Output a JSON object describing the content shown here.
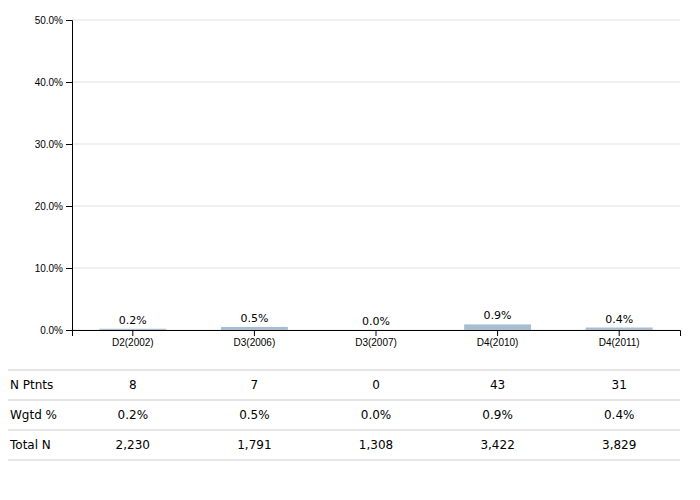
{
  "chart_data": {
    "type": "bar",
    "categories": [
      "D2(2002)",
      "D3(2006)",
      "D3(2007)",
      "D4(2010)",
      "D4(2011)"
    ],
    "values": [
      0.2,
      0.5,
      0.0,
      0.9,
      0.4
    ],
    "value_labels": [
      "0.2%",
      "0.5%",
      "0.0%",
      "0.9%",
      "0.4%"
    ],
    "color": "#a8bdd0",
    "ylim": [
      0,
      50
    ],
    "yticks": [
      {
        "value": 0,
        "label": "0.0%"
      },
      {
        "value": 10,
        "label": "10.0%"
      },
      {
        "value": 20,
        "label": "20.0%"
      },
      {
        "value": 30,
        "label": "30.0%"
      },
      {
        "value": 40,
        "label": "40.0%"
      },
      {
        "value": 50,
        "label": "50.0%"
      }
    ],
    "grid": true,
    "data_labels": true,
    "table": [
      {
        "label": "N Ptnts",
        "values": [
          "8",
          "7",
          "0",
          "43",
          "31"
        ]
      },
      {
        "label": "Wgtd %",
        "values": [
          "0.2%",
          "0.5%",
          "0.0%",
          "0.9%",
          "0.4%"
        ]
      },
      {
        "label": "Total N",
        "values": [
          "2,230",
          "1,791",
          "1,308",
          "3,422",
          "3,829"
        ]
      }
    ]
  }
}
